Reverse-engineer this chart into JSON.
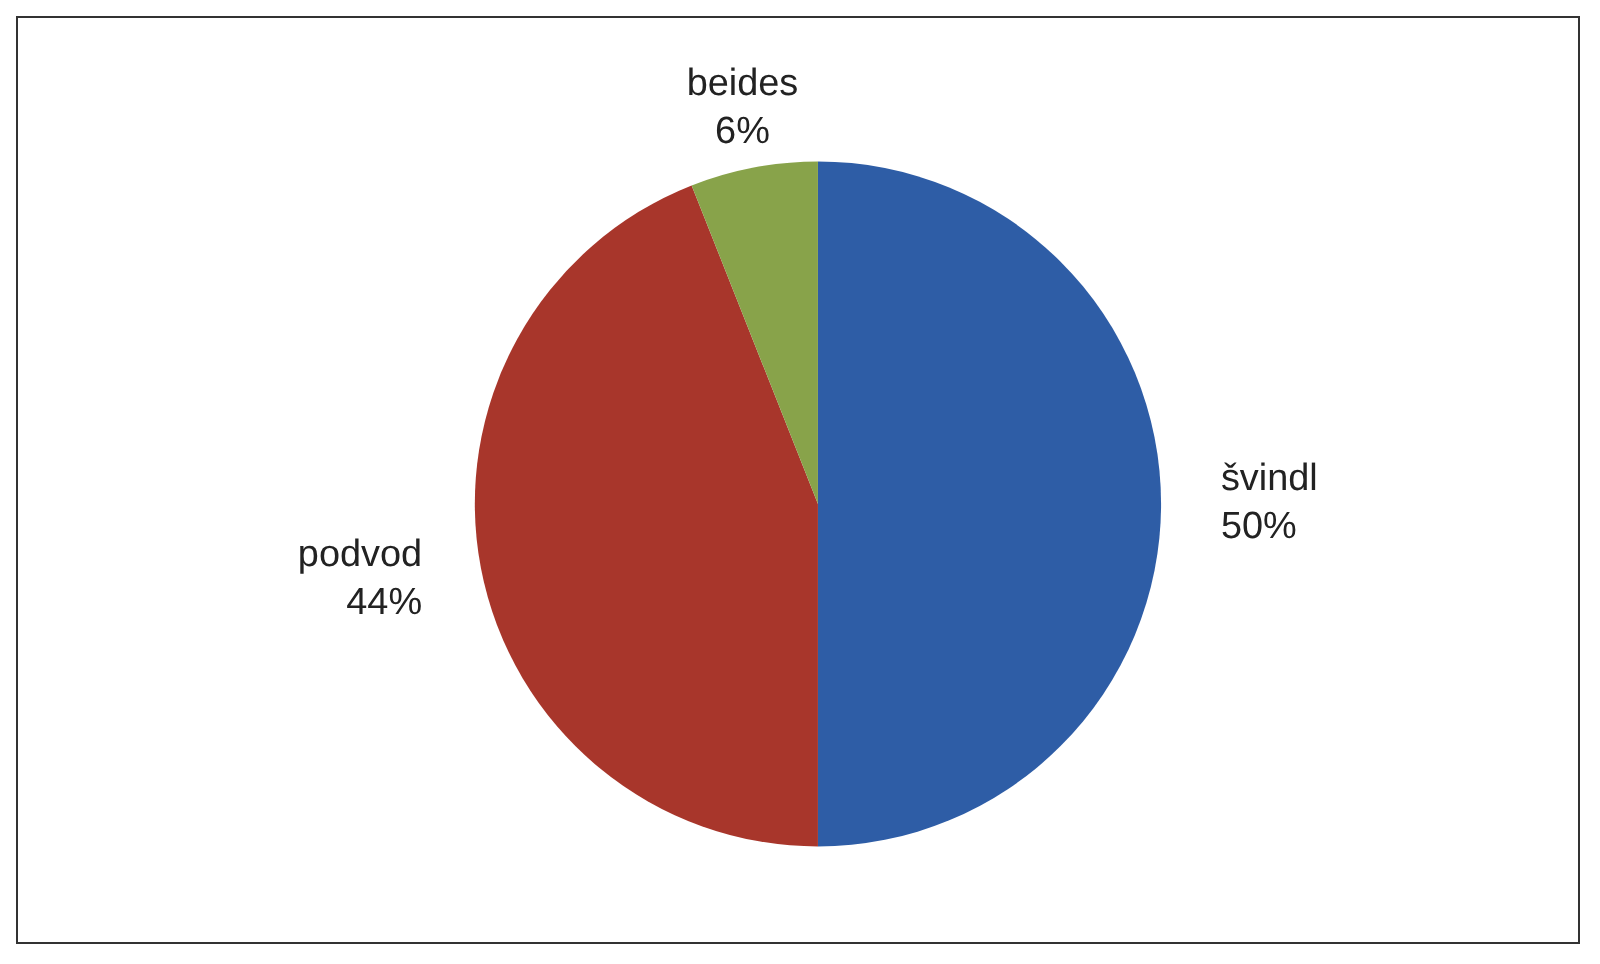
{
  "chart_data": {
    "type": "pie",
    "categories": [
      "švindl",
      "podvod",
      "beides"
    ],
    "values": [
      50,
      44,
      6
    ],
    "value_labels": [
      "50%",
      "44%",
      "6%"
    ],
    "colors": [
      "#2e5da6",
      "#a8362b",
      "#88a34a"
    ],
    "legend": false
  }
}
